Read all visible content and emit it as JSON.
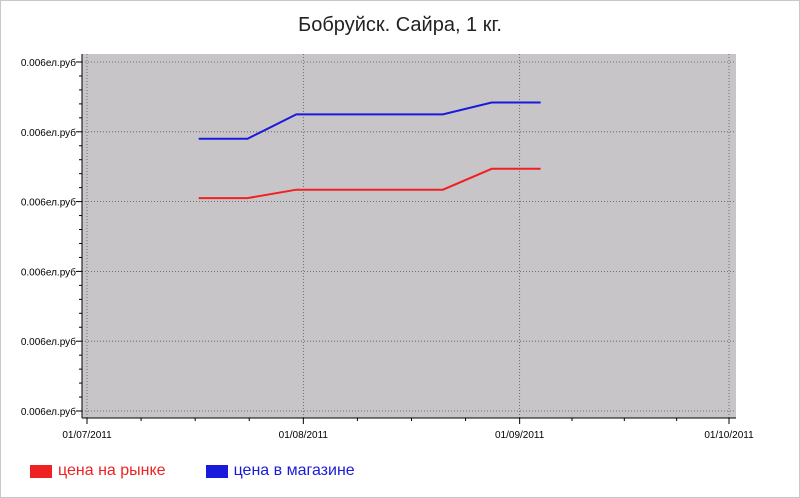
{
  "chart_data": {
    "type": "line",
    "title": "Бобруйск. Сайра, 1 кг.",
    "xlabel": "",
    "ylabel": "",
    "x_ticks": [
      "01/07/2011",
      "01/08/2011",
      "01/09/2011",
      "01/10/2011"
    ],
    "x_range": [
      "2011-07-01",
      "2011-10-01"
    ],
    "y_ticks": [
      "0.006ел.руб",
      "0.006ел.руб",
      "0.006ел.руб",
      "0.006ел.руб",
      "0.006ел.руб",
      "0.006ел.руб"
    ],
    "y_range": [
      0,
      5
    ],
    "grid": true,
    "legend_position": "bottom-left",
    "plot_background": "#c8c5c8",
    "series": [
      {
        "name": "цена на рынке",
        "color": "#ee2222",
        "points": [
          [
            "2011-07-17",
            3.05
          ],
          [
            "2011-07-24",
            3.05
          ],
          [
            "2011-07-31",
            3.17
          ],
          [
            "2011-08-07",
            3.17
          ],
          [
            "2011-08-14",
            3.17
          ],
          [
            "2011-08-21",
            3.17
          ],
          [
            "2011-08-28",
            3.47
          ],
          [
            "2011-09-04",
            3.47
          ]
        ]
      },
      {
        "name": "цена в магазине",
        "color": "#1a1adc",
        "points": [
          [
            "2011-07-17",
            3.9
          ],
          [
            "2011-07-24",
            3.9
          ],
          [
            "2011-07-31",
            4.25
          ],
          [
            "2011-08-07",
            4.25
          ],
          [
            "2011-08-14",
            4.25
          ],
          [
            "2011-08-21",
            4.25
          ],
          [
            "2011-08-28",
            4.42
          ],
          [
            "2011-09-04",
            4.42
          ]
        ]
      }
    ]
  }
}
